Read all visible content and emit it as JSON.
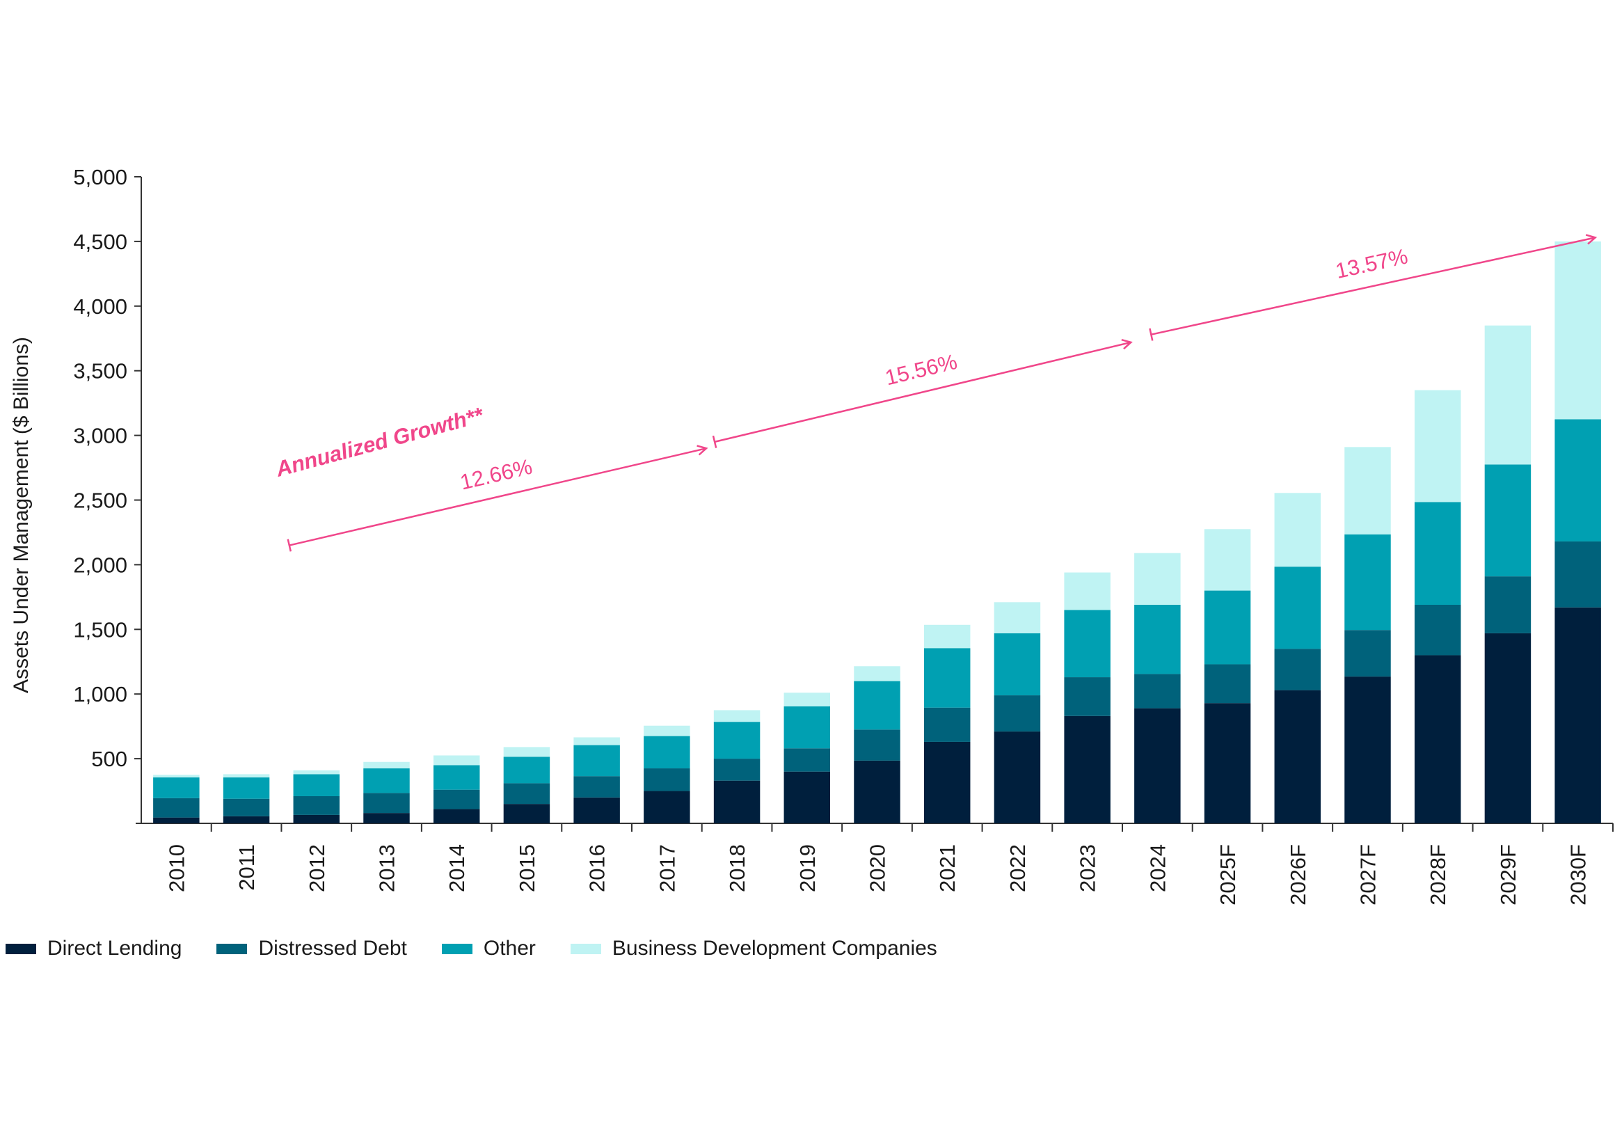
{
  "chart_data": {
    "type": "bar",
    "stacked": true,
    "ylabel": "Assets Under Management ($ Billions)",
    "xlabel": "",
    "ylim": [
      0,
      5000
    ],
    "yticks": [
      500,
      1000,
      1500,
      2000,
      2500,
      3000,
      3500,
      4000,
      4500,
      5000
    ],
    "ytick_labels": [
      "500",
      "1,000",
      "1,500",
      "2,000",
      "2,500",
      "3,000",
      "3,500",
      "4,000",
      "4,500",
      "5,000"
    ],
    "categories": [
      "2010",
      "2011",
      "2012",
      "2013",
      "2014",
      "2015",
      "2016",
      "2017",
      "2018",
      "2019",
      "2020",
      "2021",
      "2022",
      "2023",
      "2024",
      "2025F",
      "2026F",
      "2027F",
      "2028F",
      "2029F",
      "2030F"
    ],
    "series": [
      {
        "name": "Direct Lending",
        "color": "#001f3d",
        "values": [
          45,
          55,
          65,
          80,
          110,
          150,
          200,
          250,
          330,
          400,
          485,
          630,
          710,
          830,
          890,
          930,
          1030,
          1135,
          1300,
          1470,
          1670
        ]
      },
      {
        "name": "Distressed Debt",
        "color": "#00627b",
        "values": [
          150,
          135,
          145,
          155,
          150,
          160,
          165,
          175,
          170,
          180,
          240,
          265,
          280,
          300,
          265,
          300,
          320,
          360,
          390,
          440,
          510
        ]
      },
      {
        "name": "Other",
        "color": "#00a0b2",
        "values": [
          160,
          165,
          170,
          190,
          190,
          205,
          240,
          250,
          285,
          325,
          375,
          460,
          480,
          520,
          535,
          570,
          635,
          740,
          795,
          865,
          945
        ]
      },
      {
        "name": "Business Development Companies",
        "color": "#bff3f3",
        "values": [
          20,
          25,
          30,
          50,
          75,
          75,
          60,
          80,
          90,
          105,
          115,
          180,
          240,
          290,
          400,
          475,
          570,
          675,
          865,
          1075,
          1375
        ]
      }
    ],
    "annotations": {
      "title": "Annualized Growth**",
      "rates": [
        {
          "label": "12.66%",
          "from": "2012",
          "to": "2018"
        },
        {
          "label": "15.56%",
          "from": "2018",
          "to": "2024"
        },
        {
          "label": "13.57%",
          "from": "2024",
          "to": "2030F"
        }
      ],
      "color": "#f0468a"
    },
    "legend_position": "bottom-left"
  }
}
